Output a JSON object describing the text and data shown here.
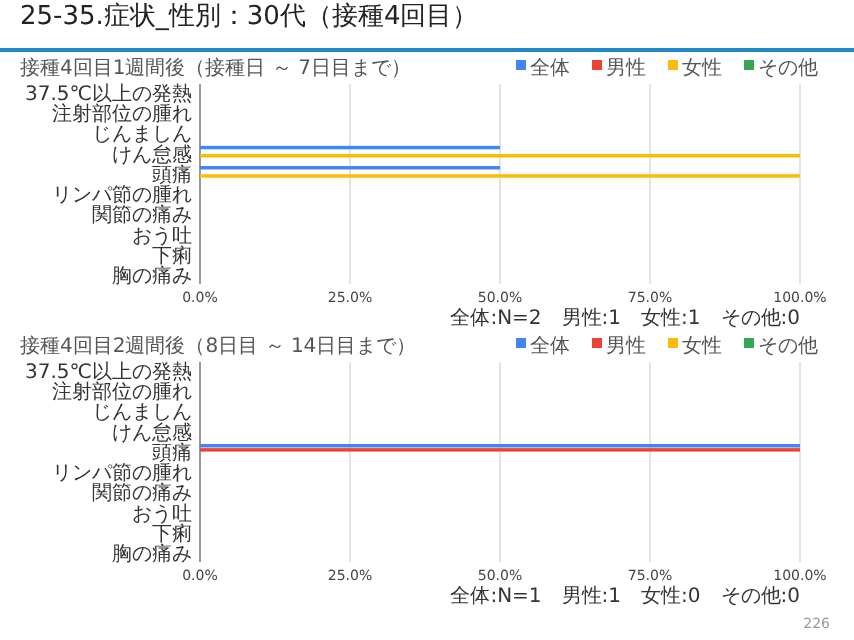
{
  "chart_data": [
    {
      "type": "bar",
      "orientation": "horizontal",
      "title": "25-35.症状_性別：30代（接種4回目）",
      "subtitle": "接種4回目1週間後（接種日 ～ 7日目まで）",
      "categories": [
        "37.5℃以上の発熱",
        "注射部位の腫れ",
        "じんましん",
        "けん怠感",
        "頭痛",
        "リンパ節の腫れ",
        "関節の痛み",
        "おう吐",
        "下痢",
        "胸の痛み"
      ],
      "series": [
        {
          "name": "全体",
          "color": "#4285f4",
          "values": [
            0,
            0,
            0,
            50,
            50,
            0,
            0,
            0,
            0,
            0
          ]
        },
        {
          "name": "男性",
          "color": "#ea4335",
          "values": [
            0,
            0,
            0,
            0,
            0,
            0,
            0,
            0,
            0,
            0
          ]
        },
        {
          "name": "女性",
          "color": "#fbbc04",
          "values": [
            0,
            0,
            0,
            100,
            100,
            0,
            0,
            0,
            0,
            0
          ]
        },
        {
          "name": "その他",
          "color": "#34a853",
          "values": [
            0,
            0,
            0,
            0,
            0,
            0,
            0,
            0,
            0,
            0
          ]
        }
      ],
      "xlim": [
        0,
        100
      ],
      "xticks": [
        {
          "value": 0,
          "label": "0.0%"
        },
        {
          "value": 25,
          "label": "25.0%"
        },
        {
          "value": 50,
          "label": "50.0%"
        },
        {
          "value": 75,
          "label": "75.0%"
        },
        {
          "value": 100,
          "label": "100.0%"
        }
      ],
      "grid": "x",
      "legend": "top",
      "annotations": [
        "全体:N=2　男性:1　女性:1　その他:0"
      ]
    },
    {
      "type": "bar",
      "orientation": "horizontal",
      "title": "接種4回目2週間後（8日目 ～ 14日目まで）",
      "categories": [
        "37.5℃以上の発熱",
        "注射部位の腫れ",
        "じんましん",
        "けん怠感",
        "頭痛",
        "リンパ節の腫れ",
        "関節の痛み",
        "おう吐",
        "下痢",
        "胸の痛み"
      ],
      "series": [
        {
          "name": "全体",
          "color": "#4285f4",
          "values": [
            0,
            0,
            0,
            0,
            100,
            0,
            0,
            0,
            0,
            0
          ]
        },
        {
          "name": "男性",
          "color": "#ea4335",
          "values": [
            0,
            0,
            0,
            0,
            100,
            0,
            0,
            0,
            0,
            0
          ]
        },
        {
          "name": "女性",
          "color": "#fbbc04",
          "values": [
            0,
            0,
            0,
            0,
            0,
            0,
            0,
            0,
            0,
            0
          ]
        },
        {
          "name": "その他",
          "color": "#34a853",
          "values": [
            0,
            0,
            0,
            0,
            0,
            0,
            0,
            0,
            0,
            0
          ]
        }
      ],
      "xlim": [
        0,
        100
      ],
      "xticks": [
        {
          "value": 0,
          "label": "0.0%"
        },
        {
          "value": 25,
          "label": "25.0%"
        },
        {
          "value": 50,
          "label": "50.0%"
        },
        {
          "value": 75,
          "label": "75.0%"
        },
        {
          "value": 100,
          "label": "100.0%"
        }
      ],
      "grid": "x",
      "legend": "top",
      "annotations": [
        "全体:N=1　男性:1　女性:0　その他:0",
        "226"
      ]
    }
  ]
}
